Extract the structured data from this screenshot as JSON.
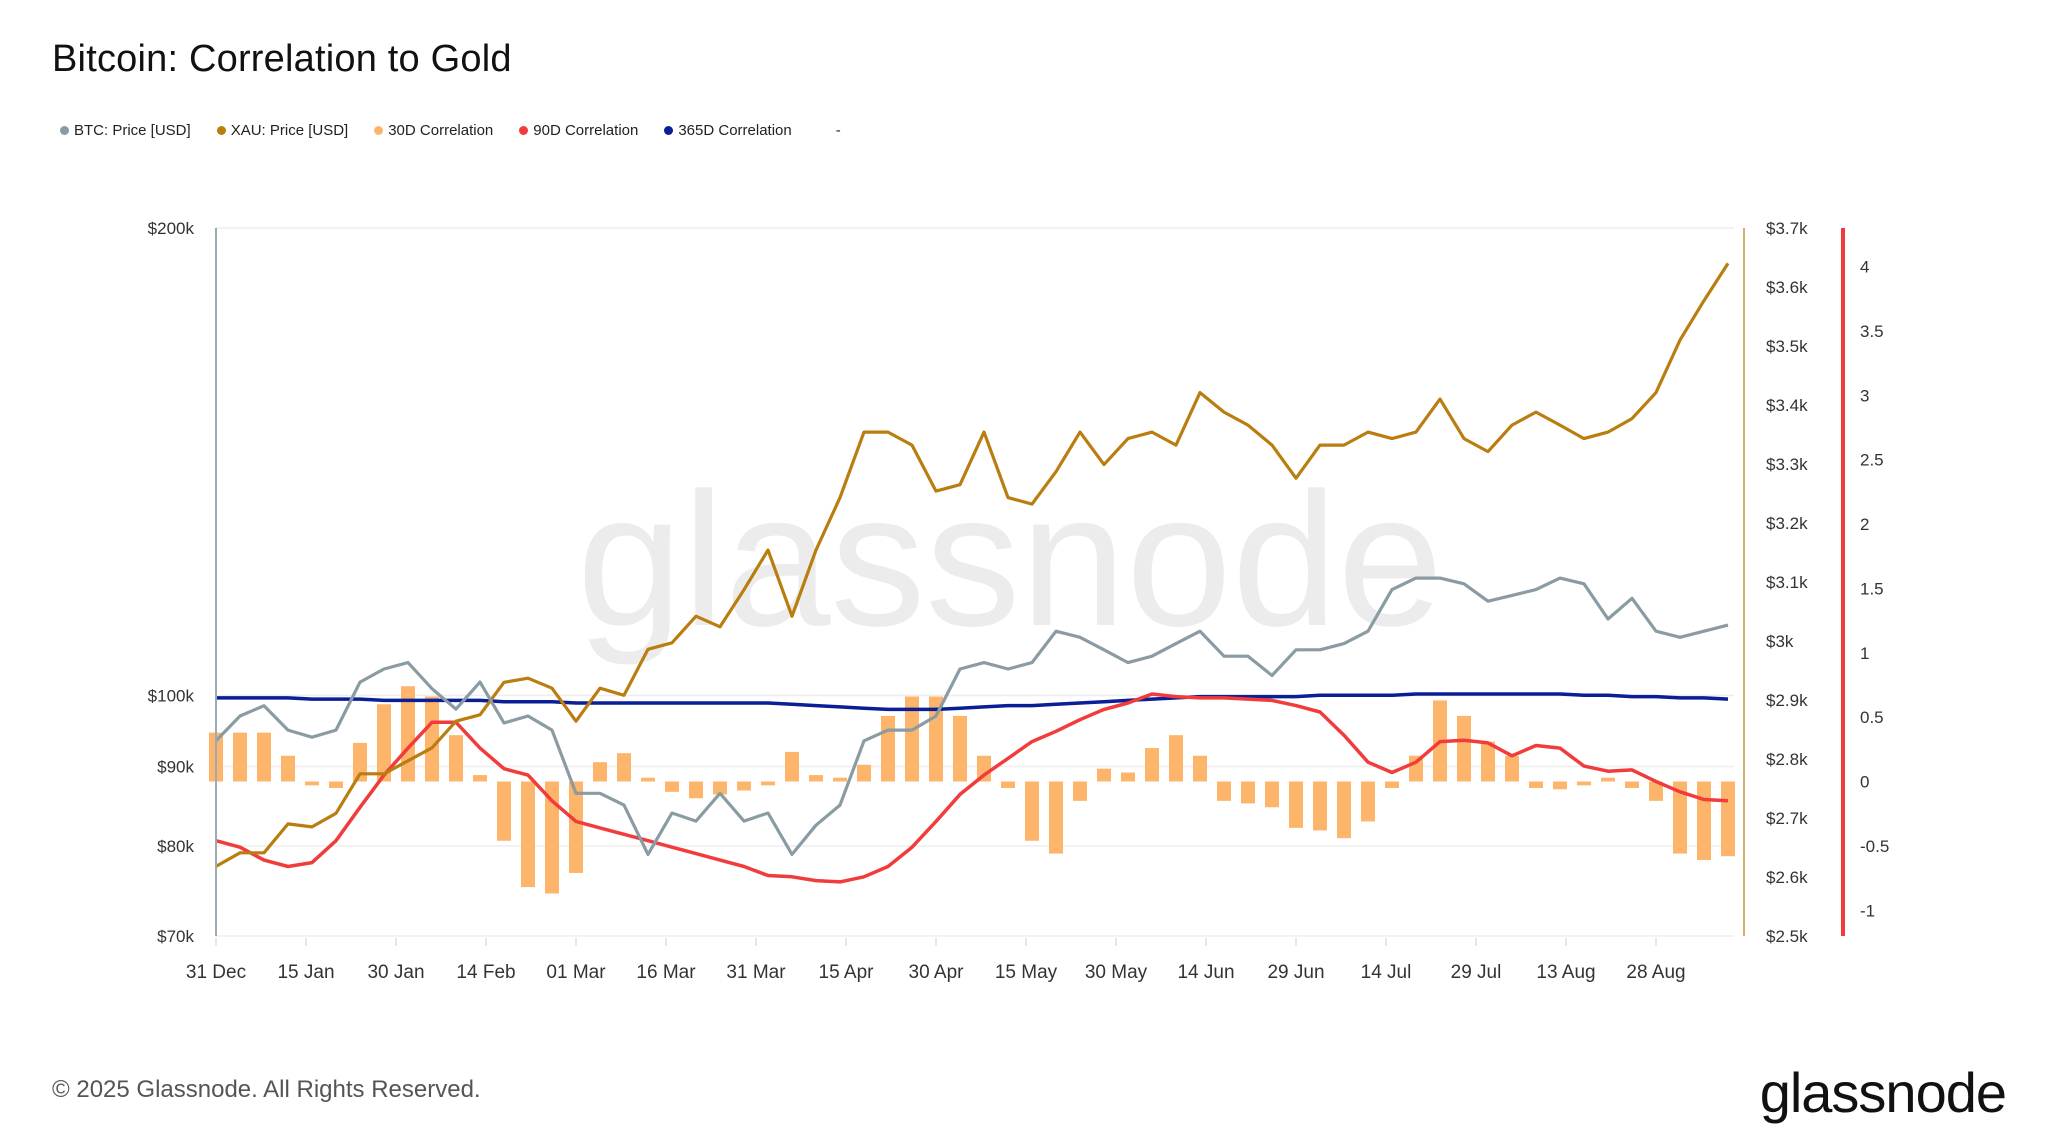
{
  "title": "Bitcoin: Correlation to Gold",
  "legend": [
    {
      "label": "BTC: Price [USD]",
      "color": "#8a9ba3"
    },
    {
      "label": "XAU: Price [USD]",
      "color": "#b97d10"
    },
    {
      "label": "30D Correlation",
      "color": "#fdb46b"
    },
    {
      "label": "90D Correlation",
      "color": "#f23b3b"
    },
    {
      "label": "365D Correlation",
      "color": "#0a1e96"
    },
    {
      "label": "-",
      "color": ""
    }
  ],
  "footer": {
    "copyright": "© 2025 Glassnode. All Rights Reserved.",
    "logo": "glassnode",
    "watermark": "glassnode"
  },
  "chart_data": {
    "type": "line",
    "title": "Bitcoin: Correlation to Gold",
    "x_range": [
      "2024-12-31",
      "2025-09-10"
    ],
    "x_ticks": [
      {
        "date": "2024-12-31",
        "label": "31 Dec"
      },
      {
        "date": "2025-01-15",
        "label": "15 Jan"
      },
      {
        "date": "2025-01-30",
        "label": "30 Jan"
      },
      {
        "date": "2025-02-14",
        "label": "14 Feb"
      },
      {
        "date": "2025-03-01",
        "label": "01 Mar"
      },
      {
        "date": "2025-03-16",
        "label": "16 Mar"
      },
      {
        "date": "2025-03-31",
        "label": "31 Mar"
      },
      {
        "date": "2025-04-15",
        "label": "15 Apr"
      },
      {
        "date": "2025-04-30",
        "label": "30 Apr"
      },
      {
        "date": "2025-05-15",
        "label": "15 May"
      },
      {
        "date": "2025-05-30",
        "label": "30 May"
      },
      {
        "date": "2025-06-14",
        "label": "14 Jun"
      },
      {
        "date": "2025-06-29",
        "label": "29 Jun"
      },
      {
        "date": "2025-07-14",
        "label": "14 Jul"
      },
      {
        "date": "2025-07-29",
        "label": "29 Jul"
      },
      {
        "date": "2025-08-13",
        "label": "13 Aug"
      },
      {
        "date": "2025-08-28",
        "label": "28 Aug"
      }
    ],
    "axes": {
      "btc": {
        "side": "left",
        "scale": "log",
        "range": [
          70000,
          200000
        ],
        "ticks": [
          {
            "v": 200000,
            "label": "$200k"
          },
          {
            "v": 100000,
            "label": "$100k"
          },
          {
            "v": 90000,
            "label": "$90k"
          },
          {
            "v": 80000,
            "label": "$80k"
          },
          {
            "v": 70000,
            "label": "$70k"
          }
        ]
      },
      "xau": {
        "side": "right",
        "scale": "linear",
        "range": [
          2500,
          3700
        ],
        "color": "#d4b06a",
        "ticks": [
          {
            "v": 3700,
            "label": "$3.7k"
          },
          {
            "v": 3600,
            "label": "$3.6k"
          },
          {
            "v": 3500,
            "label": "$3.5k"
          },
          {
            "v": 3400,
            "label": "$3.4k"
          },
          {
            "v": 3300,
            "label": "$3.3k"
          },
          {
            "v": 3200,
            "label": "$3.2k"
          },
          {
            "v": 3100,
            "label": "$3.1k"
          },
          {
            "v": 3000,
            "label": "$3k"
          },
          {
            "v": 2900,
            "label": "$2.9k"
          },
          {
            "v": 2800,
            "label": "$2.8k"
          },
          {
            "v": 2700,
            "label": "$2.7k"
          },
          {
            "v": 2600,
            "label": "$2.6k"
          },
          {
            "v": 2500,
            "label": "$2.5k"
          }
        ]
      },
      "corr": {
        "side": "right",
        "scale": "linear",
        "range": [
          -1.2,
          4.3
        ],
        "color": "#f23b3b",
        "ticks": [
          {
            "v": 4,
            "label": "4"
          },
          {
            "v": 3.5,
            "label": "3.5"
          },
          {
            "v": 3,
            "label": "3"
          },
          {
            "v": 2.5,
            "label": "2.5"
          },
          {
            "v": 2,
            "label": "2"
          },
          {
            "v": 1.5,
            "label": "1.5"
          },
          {
            "v": 1,
            "label": "1"
          },
          {
            "v": 0.5,
            "label": "0.5"
          },
          {
            "v": 0,
            "label": "0"
          },
          {
            "v": -0.5,
            "label": "-0.5"
          },
          {
            "v": -1,
            "label": "-1"
          }
        ]
      }
    },
    "dates": [
      "2024-12-31",
      "2025-01-04",
      "2025-01-08",
      "2025-01-12",
      "2025-01-16",
      "2025-01-20",
      "2025-01-24",
      "2025-01-28",
      "2025-02-01",
      "2025-02-05",
      "2025-02-09",
      "2025-02-13",
      "2025-02-17",
      "2025-02-21",
      "2025-02-25",
      "2025-03-01",
      "2025-03-05",
      "2025-03-09",
      "2025-03-13",
      "2025-03-17",
      "2025-03-21",
      "2025-03-25",
      "2025-03-29",
      "2025-04-02",
      "2025-04-06",
      "2025-04-10",
      "2025-04-14",
      "2025-04-18",
      "2025-04-22",
      "2025-04-26",
      "2025-04-30",
      "2025-05-04",
      "2025-05-08",
      "2025-05-12",
      "2025-05-16",
      "2025-05-20",
      "2025-05-24",
      "2025-05-28",
      "2025-06-01",
      "2025-06-05",
      "2025-06-09",
      "2025-06-13",
      "2025-06-17",
      "2025-06-21",
      "2025-06-25",
      "2025-06-29",
      "2025-07-03",
      "2025-07-07",
      "2025-07-11",
      "2025-07-15",
      "2025-07-19",
      "2025-07-23",
      "2025-07-27",
      "2025-07-31",
      "2025-08-04",
      "2025-08-08",
      "2025-08-12",
      "2025-08-16",
      "2025-08-20",
      "2025-08-24",
      "2025-08-28",
      "2025-09-01",
      "2025-09-05",
      "2025-09-09"
    ],
    "series": [
      {
        "name": "30D Correlation",
        "axis": "corr",
        "kind": "bar",
        "color": "#fdb46b",
        "values": [
          0.38,
          0.38,
          0.38,
          0.2,
          -0.03,
          -0.05,
          0.3,
          0.6,
          0.74,
          0.66,
          0.36,
          0.05,
          -0.46,
          -0.82,
          -0.87,
          -0.71,
          0.15,
          0.22,
          0.03,
          -0.08,
          -0.13,
          -0.1,
          -0.07,
          -0.03,
          0.23,
          0.05,
          0.03,
          0.13,
          0.51,
          0.66,
          0.66,
          0.51,
          0.2,
          -0.05,
          -0.46,
          -0.56,
          -0.15,
          0.1,
          0.07,
          0.26,
          0.36,
          0.2,
          -0.15,
          -0.17,
          -0.2,
          -0.36,
          -0.38,
          -0.44,
          -0.31,
          -0.05,
          0.2,
          0.63,
          0.51,
          0.31,
          0.2,
          -0.05,
          -0.06,
          -0.03,
          0.03,
          -0.05,
          -0.15,
          -0.56,
          -0.61,
          -0.58
        ]
      },
      {
        "name": "365D Correlation",
        "axis": "corr",
        "kind": "line",
        "color": "#0a1e96",
        "values": [
          0.65,
          0.65,
          0.65,
          0.65,
          0.64,
          0.64,
          0.64,
          0.63,
          0.63,
          0.63,
          0.63,
          0.63,
          0.62,
          0.62,
          0.62,
          0.61,
          0.61,
          0.61,
          0.61,
          0.61,
          0.61,
          0.61,
          0.61,
          0.61,
          0.6,
          0.59,
          0.58,
          0.57,
          0.56,
          0.56,
          0.56,
          0.57,
          0.58,
          0.59,
          0.59,
          0.6,
          0.61,
          0.62,
          0.63,
          0.64,
          0.65,
          0.66,
          0.66,
          0.66,
          0.66,
          0.66,
          0.67,
          0.67,
          0.67,
          0.67,
          0.68,
          0.68,
          0.68,
          0.68,
          0.68,
          0.68,
          0.68,
          0.67,
          0.67,
          0.66,
          0.66,
          0.65,
          0.65,
          0.64
        ]
      },
      {
        "name": "90D Correlation",
        "axis": "corr",
        "kind": "line",
        "color": "#f23b3b",
        "values": [
          -0.46,
          -0.51,
          -0.61,
          -0.66,
          -0.63,
          -0.46,
          -0.2,
          0.05,
          0.26,
          0.46,
          0.46,
          0.26,
          0.1,
          0.05,
          -0.15,
          -0.31,
          -0.36,
          -0.41,
          -0.46,
          -0.51,
          -0.56,
          -0.61,
          -0.66,
          -0.73,
          -0.74,
          -0.77,
          -0.78,
          -0.74,
          -0.66,
          -0.51,
          -0.31,
          -0.1,
          0.05,
          0.18,
          0.31,
          0.39,
          0.48,
          0.56,
          0.61,
          0.68,
          0.66,
          0.65,
          0.65,
          0.64,
          0.63,
          0.59,
          0.54,
          0.36,
          0.15,
          0.07,
          0.15,
          0.31,
          0.32,
          0.3,
          0.2,
          0.28,
          0.26,
          0.12,
          0.08,
          0.09,
          0.0,
          -0.08,
          -0.14,
          -0.15
        ]
      },
      {
        "name": "XAU: Price [USD]",
        "axis": "xau",
        "kind": "line",
        "color": "#b97d10",
        "values": [
          2618,
          2641,
          2641,
          2690,
          2685,
          2708,
          2775,
          2775,
          2797,
          2819,
          2864,
          2875,
          2930,
          2937,
          2920,
          2864,
          2920,
          2908,
          2986,
          2997,
          3042,
          3024,
          3087,
          3154,
          3042,
          3154,
          3243,
          3354,
          3354,
          3332,
          3254,
          3265,
          3354,
          3243,
          3232,
          3287,
          3354,
          3299,
          3343,
          3354,
          3332,
          3421,
          3388,
          3366,
          3332,
          3276,
          3332,
          3332,
          3354,
          3343,
          3354,
          3410,
          3343,
          3321,
          3366,
          3388,
          3366,
          3343,
          3354,
          3377,
          3421,
          3510,
          3577,
          3640
        ]
      },
      {
        "name": "BTC: Price [USD]",
        "axis": "btc",
        "kind": "line",
        "color": "#8a9ba3",
        "values": [
          93500,
          97000,
          98500,
          95000,
          94000,
          95000,
          102000,
          104000,
          105000,
          101000,
          98000,
          102000,
          96000,
          97000,
          95000,
          86500,
          86500,
          85000,
          79000,
          84000,
          83000,
          86500,
          83000,
          84000,
          79000,
          82500,
          85000,
          93500,
          95000,
          95000,
          97000,
          104000,
          105000,
          104000,
          105000,
          110000,
          109000,
          107000,
          105000,
          106000,
          108000,
          110000,
          106000,
          106000,
          103000,
          107000,
          107000,
          108000,
          110000,
          117000,
          119000,
          119000,
          118000,
          115000,
          116000,
          117000,
          119000,
          118000,
          112000,
          115500,
          110000,
          109000,
          110000,
          111000
        ]
      }
    ]
  }
}
